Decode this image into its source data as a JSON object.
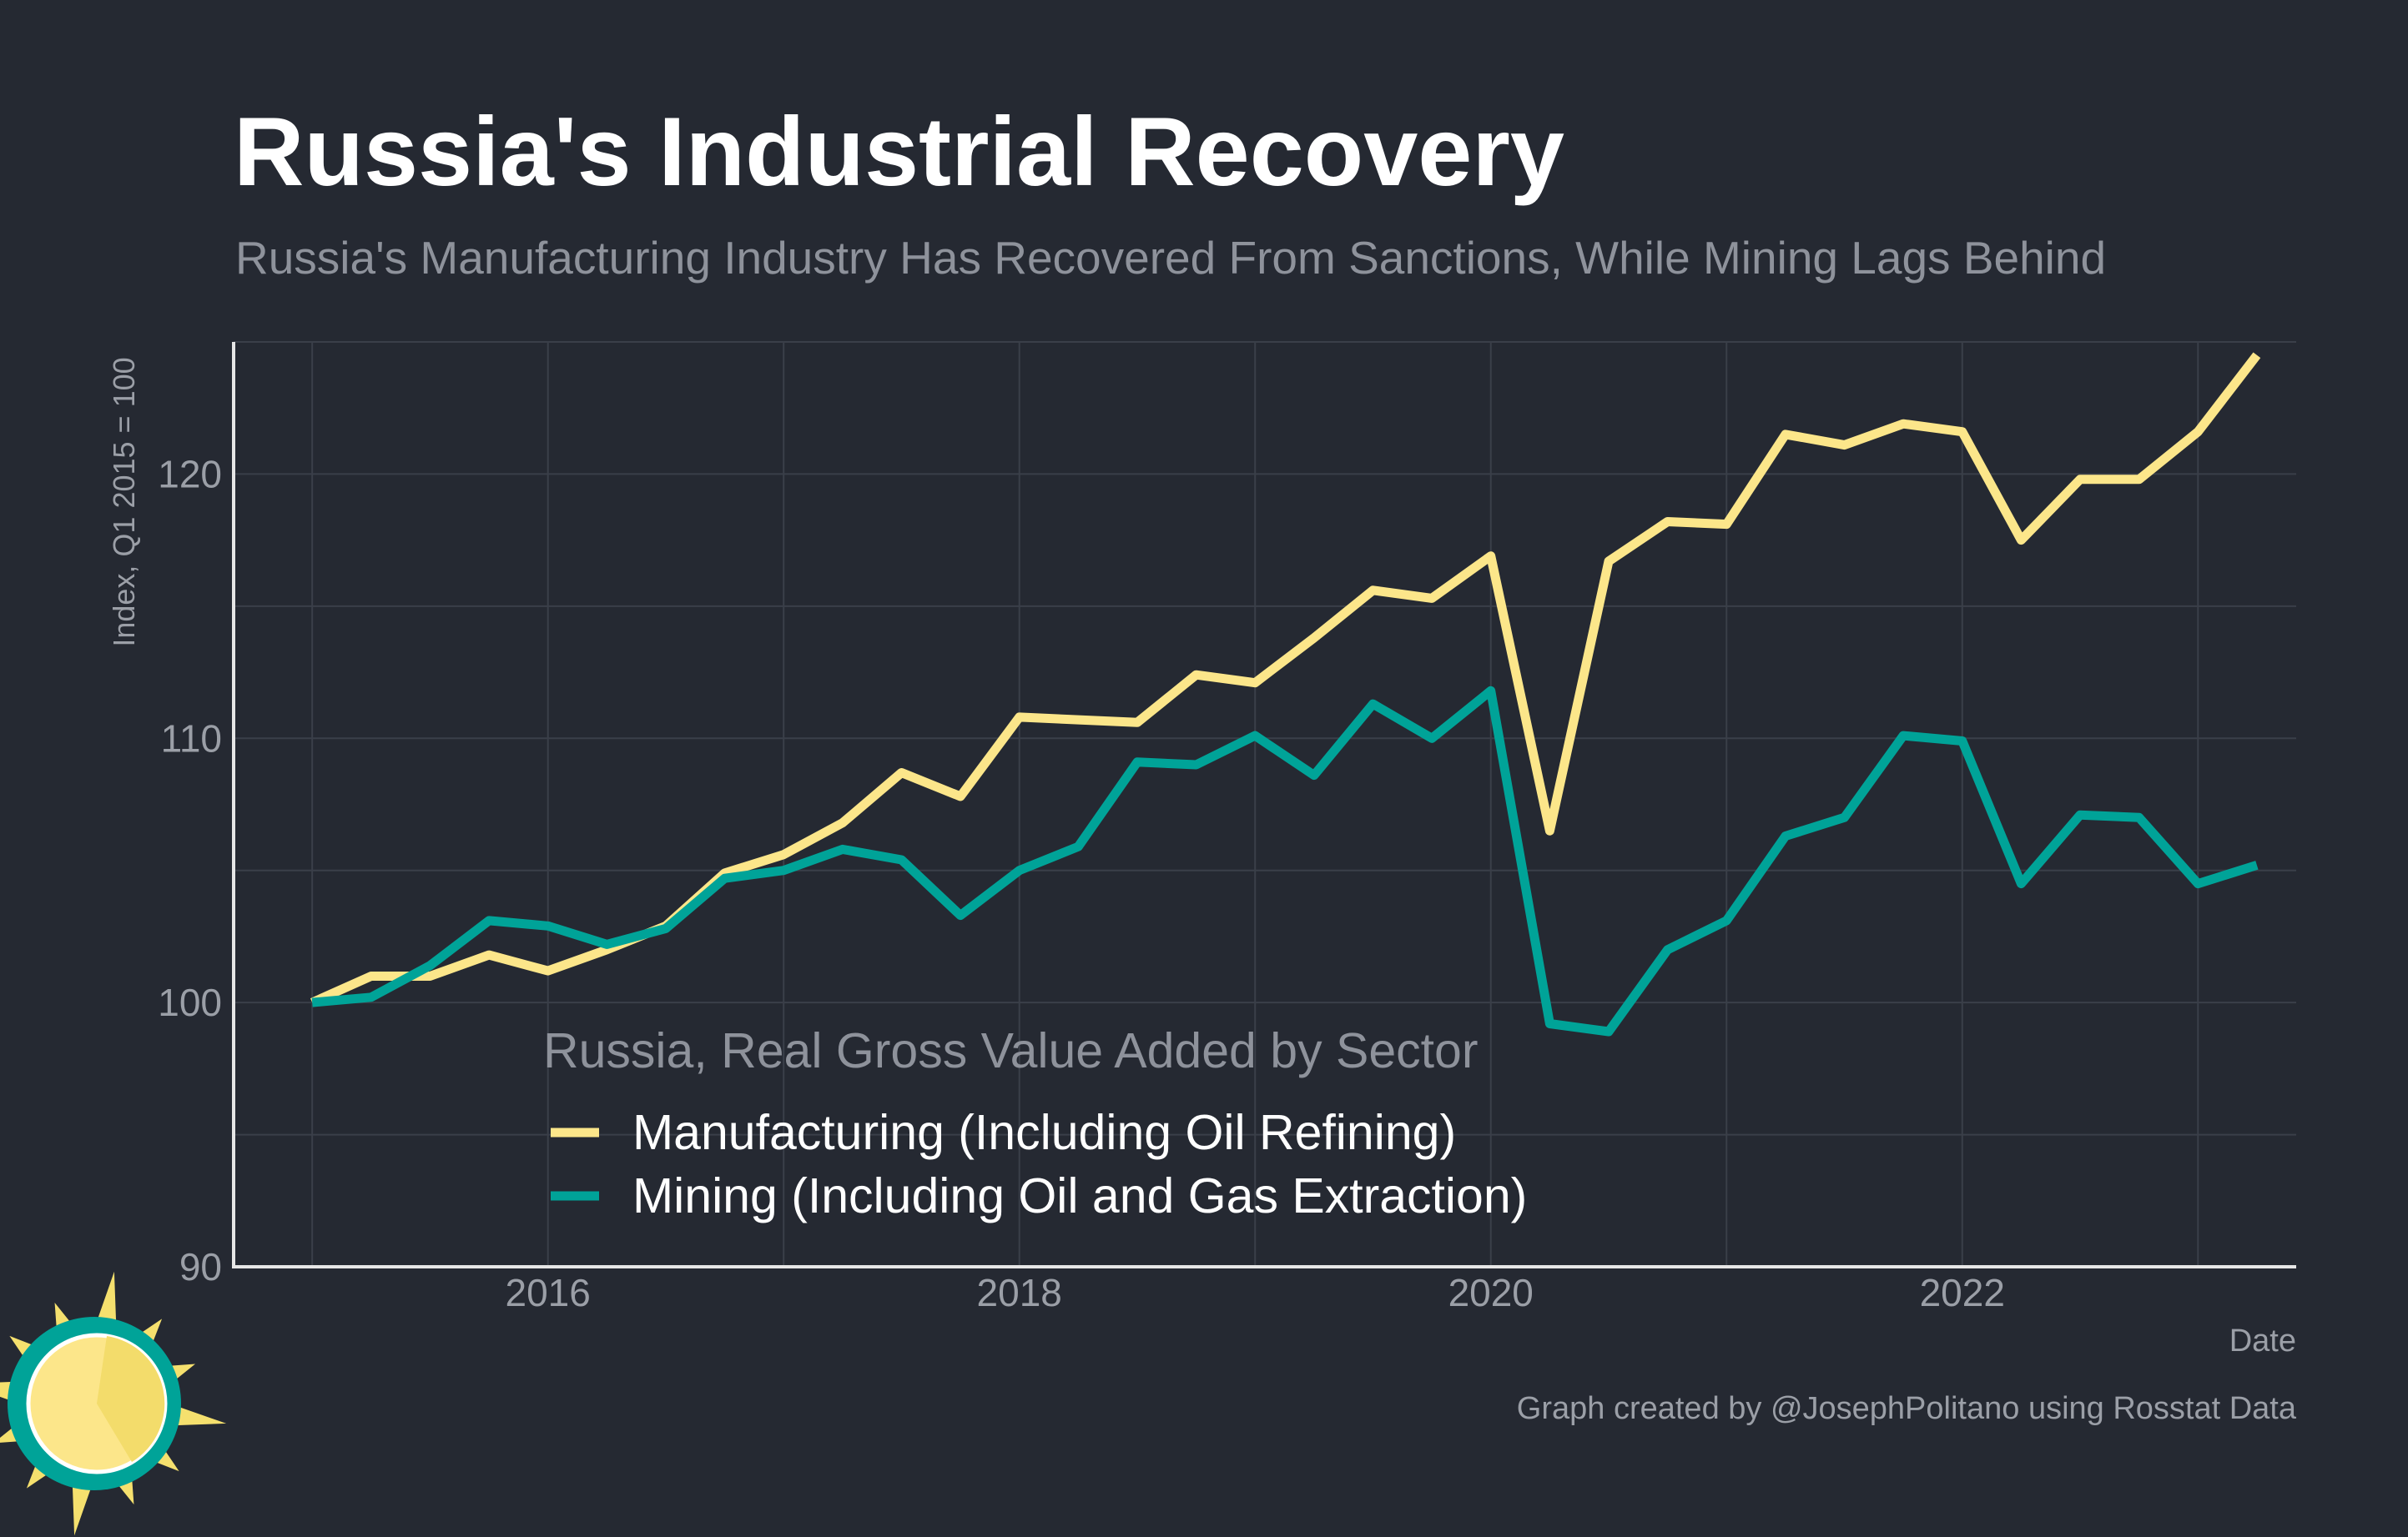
{
  "chart_data": {
    "type": "line",
    "title": "Russia's Industrial Recovery",
    "subtitle": "Russia's Manufacturing Industry Has Recovered From Sanctions, While Mining Lags Behind",
    "xlabel": "Date",
    "ylabel": "Index, Q1 2015 = 100",
    "ylim": [
      90,
      125
    ],
    "xlim": [
      "2014-09",
      "2023-06"
    ],
    "yticks": [
      90,
      100,
      110,
      120
    ],
    "xticks": [
      "2016",
      "2018",
      "2020",
      "2022"
    ],
    "grid": true,
    "legend_title": "Russia, Real Gross Value Added by Sector",
    "legend_position": "bottom-center",
    "x": [
      "2015 Q1",
      "2015 Q2",
      "2015 Q3",
      "2015 Q4",
      "2016 Q1",
      "2016 Q2",
      "2016 Q3",
      "2016 Q4",
      "2017 Q1",
      "2017 Q2",
      "2017 Q3",
      "2017 Q4",
      "2018 Q1",
      "2018 Q2",
      "2018 Q3",
      "2018 Q4",
      "2019 Q1",
      "2019 Q2",
      "2019 Q3",
      "2019 Q4",
      "2020 Q1",
      "2020 Q2",
      "2020 Q3",
      "2020 Q4",
      "2021 Q1",
      "2021 Q2",
      "2021 Q3",
      "2021 Q4",
      "2022 Q1",
      "2022 Q2",
      "2022 Q3",
      "2022 Q4",
      "2023 Q1",
      "2023 Q2"
    ],
    "series": [
      {
        "name": "Manufacturing (Including Oil Refining)",
        "color": "#fce68a",
        "values": [
          100.0,
          101.0,
          101.0,
          101.8,
          101.2,
          102.0,
          102.9,
          104.9,
          105.6,
          106.8,
          108.7,
          107.8,
          110.8,
          110.7,
          110.6,
          112.4,
          112.1,
          113.8,
          115.6,
          115.3,
          116.9,
          106.5,
          116.7,
          118.2,
          118.1,
          121.5,
          121.1,
          121.9,
          121.6,
          117.5,
          119.8,
          119.8,
          121.6,
          124.5
        ]
      },
      {
        "name": "Mining (Including Oil and Gas Extraction)",
        "color": "#00a398",
        "values": [
          100.0,
          100.2,
          101.4,
          103.1,
          102.9,
          102.2,
          102.8,
          104.7,
          105.0,
          105.8,
          105.4,
          103.3,
          105.0,
          105.9,
          109.1,
          109.0,
          110.1,
          108.6,
          111.3,
          110.0,
          111.8,
          99.2,
          98.9,
          102.0,
          103.1,
          106.3,
          107.0,
          110.1,
          109.9,
          104.5,
          107.1,
          107.0,
          104.5,
          105.2
        ]
      }
    ]
  },
  "caption": "Graph created by @JosephPolitano using Rosstat Data",
  "logo": {
    "icon": "sun-logo-icon",
    "colors": {
      "rays": "#f5e06e",
      "disc": "#fce68a",
      "shade": "#f3dc6b",
      "ring": "#00a398"
    }
  },
  "colors": {
    "background": "#252932",
    "grid": "#3a3f49",
    "axis": "#e6e6e6"
  }
}
